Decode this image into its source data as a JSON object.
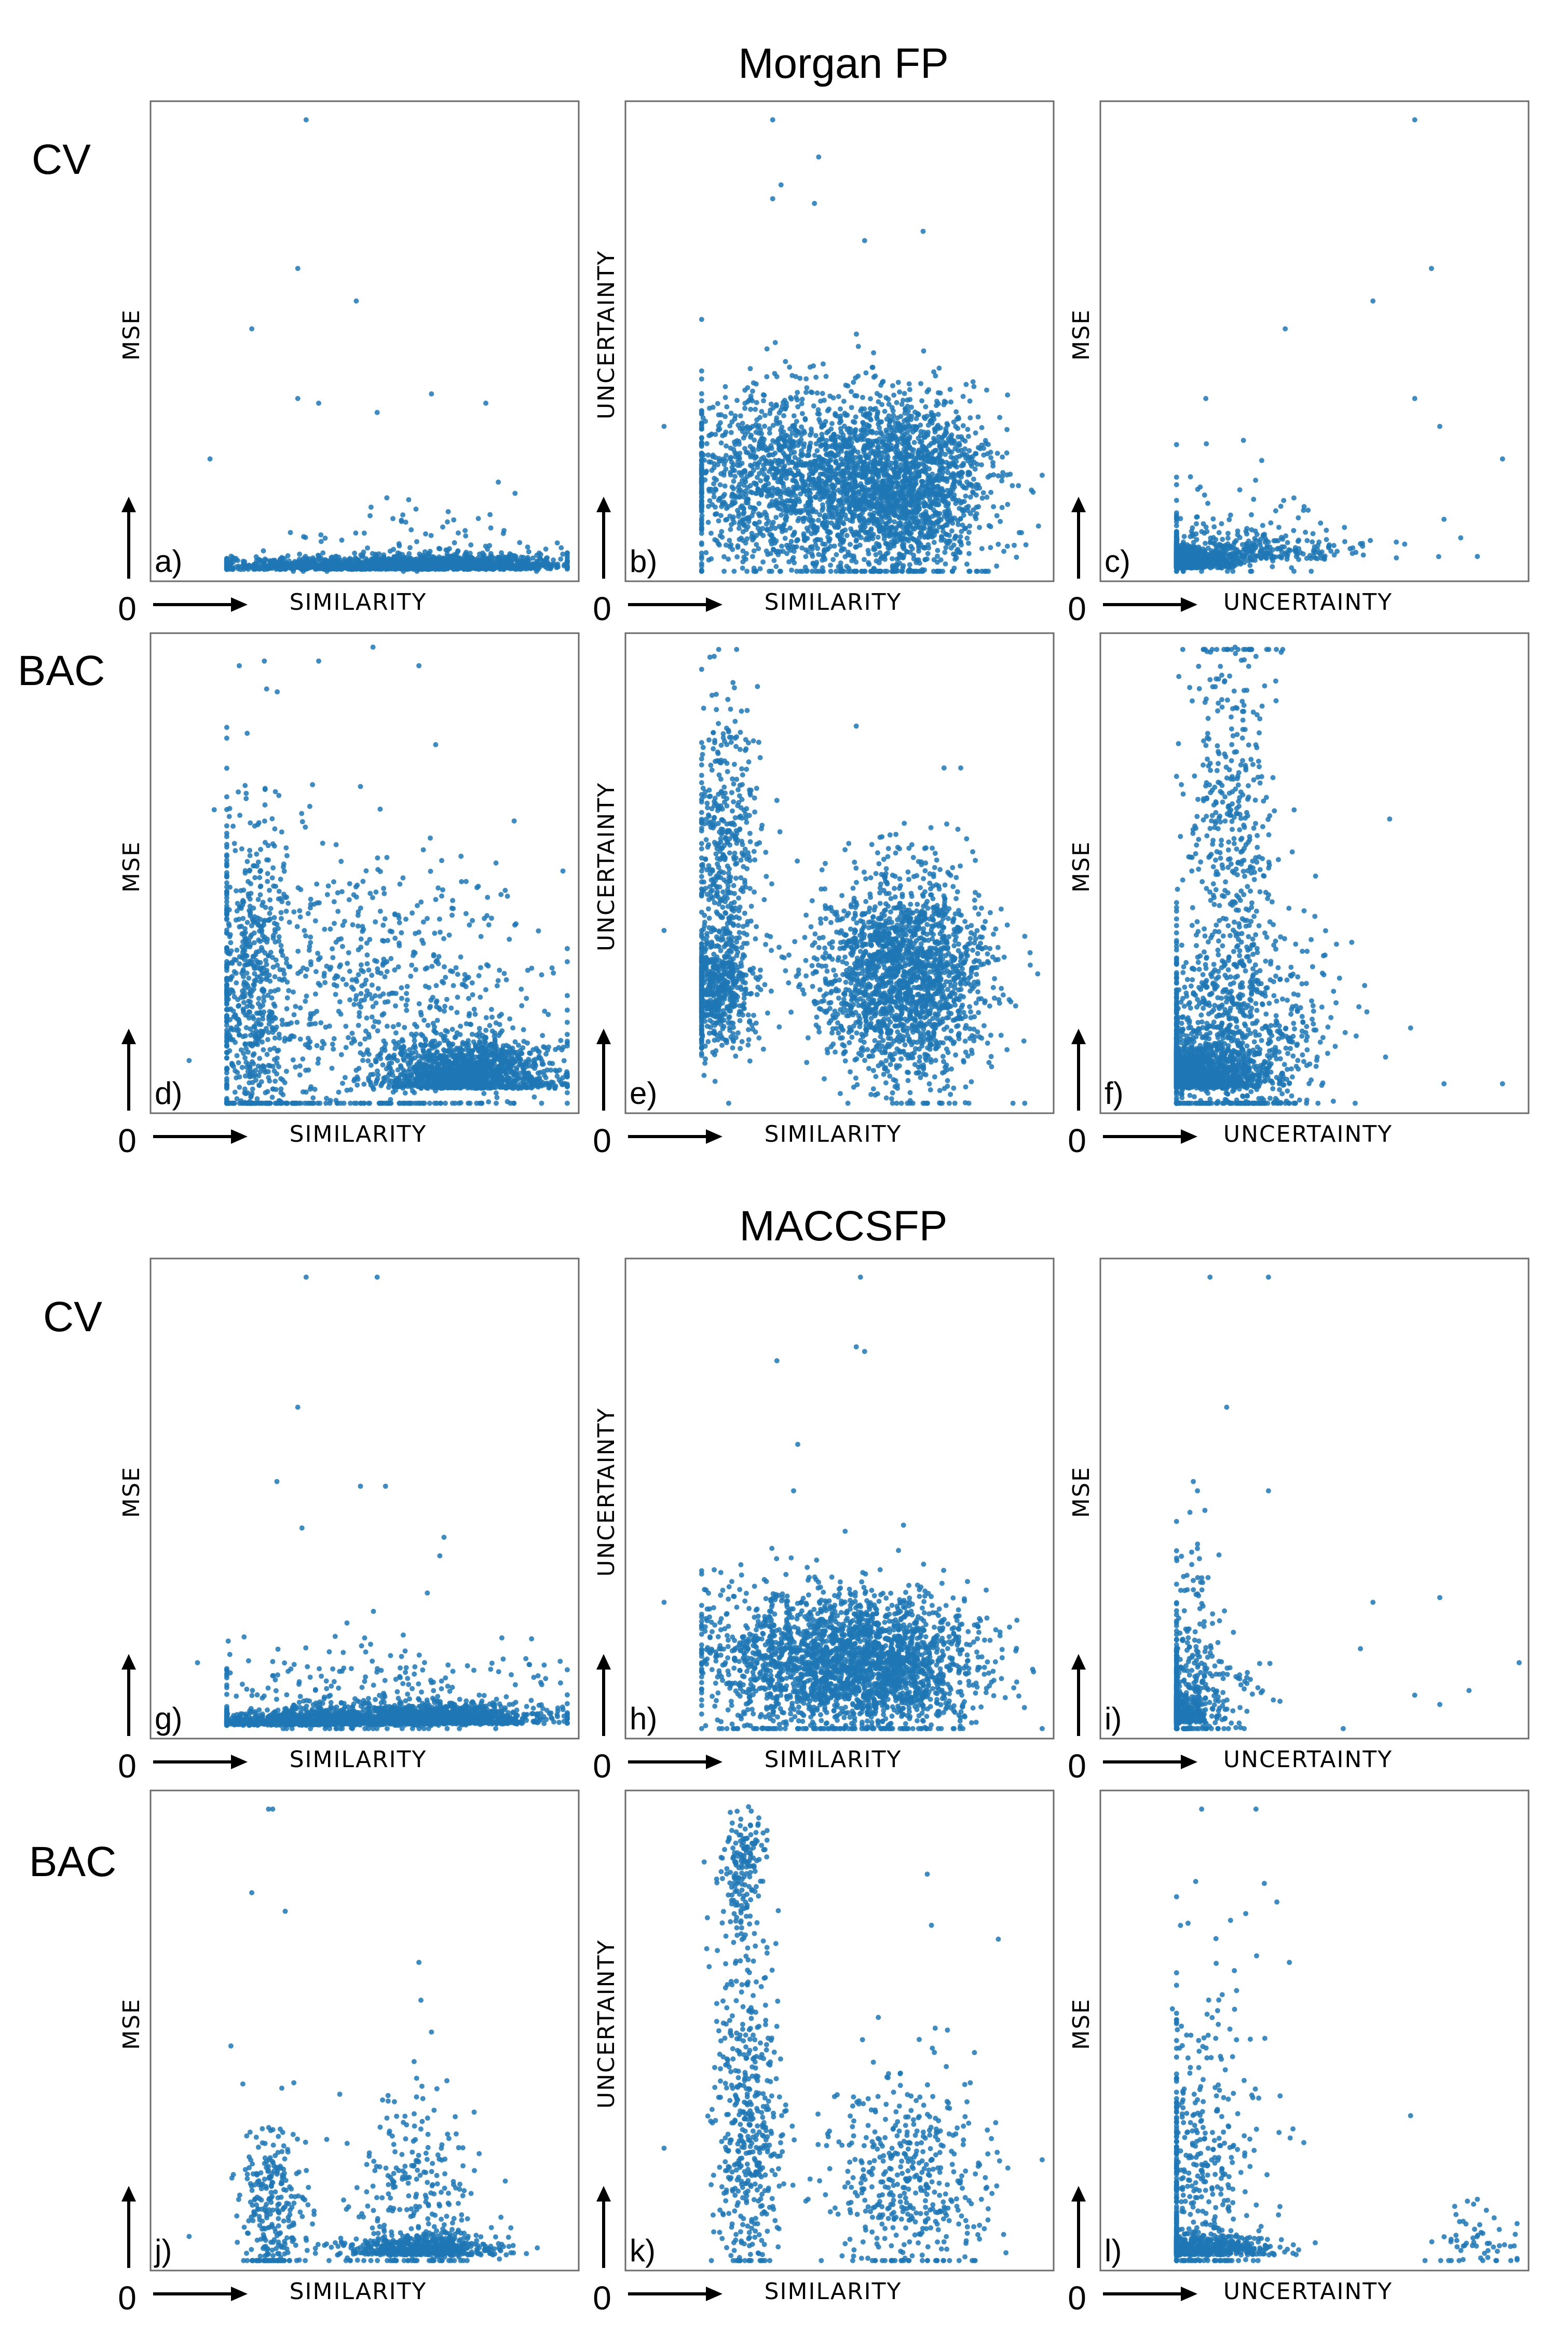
{
  "sections": [
    {
      "title": "Morgan FP",
      "rows": [
        {
          "label": "CV"
        },
        {
          "label": "BAC"
        }
      ]
    },
    {
      "title": "MACCSFP",
      "rows": [
        {
          "label": "CV"
        },
        {
          "label": "BAC"
        }
      ]
    }
  ],
  "colors": {
    "points": "#1f77b4",
    "frame": "#6b6b6b",
    "axis_arrow": "#000000"
  },
  "chart_data": [
    {
      "id": "a",
      "panel_label": "a)",
      "type": "scatter",
      "xlabel": "SIMILARITY",
      "ylabel": "MSE",
      "origin_label": "0",
      "xlim": [
        0,
        1
      ],
      "ylim": [
        0,
        1
      ],
      "seed": 11,
      "n": 1700,
      "clusters": [
        {
          "w": 0.55,
          "mx": 0.7,
          "sx": 0.14,
          "my": 0.012,
          "sy": 0.015
        },
        {
          "w": 0.4,
          "mx": 0.4,
          "sx": 0.18,
          "my": 0.012,
          "sy": 0.012
        },
        {
          "w": 0.05,
          "mx": 0.6,
          "sx": 0.18,
          "my": 0.07,
          "sy": 0.05
        }
      ],
      "outliers": [
        [
          0.36,
          0.98
        ],
        [
          0.34,
          0.66
        ],
        [
          0.48,
          0.59
        ],
        [
          0.23,
          0.53
        ],
        [
          0.34,
          0.38
        ],
        [
          0.39,
          0.37
        ],
        [
          0.66,
          0.39
        ],
        [
          0.79,
          0.37
        ],
        [
          0.53,
          0.35
        ],
        [
          0.13,
          0.25
        ],
        [
          0.82,
          0.2
        ]
      ]
    },
    {
      "id": "b",
      "panel_label": "b)",
      "type": "scatter",
      "xlabel": "SIMILARITY",
      "ylabel": "UNCERTAINTY",
      "origin_label": "0",
      "xlim": [
        0,
        1
      ],
      "ylim": [
        0,
        1
      ],
      "seed": 22,
      "n": 3200,
      "clusters": [
        {
          "w": 0.6,
          "mx": 0.64,
          "sx": 0.11,
          "my": 0.19,
          "sy": 0.1
        },
        {
          "w": 0.4,
          "mx": 0.36,
          "sx": 0.13,
          "my": 0.2,
          "sy": 0.1
        }
      ],
      "outliers": [
        [
          0.34,
          0.98
        ],
        [
          0.45,
          0.9
        ],
        [
          0.36,
          0.84
        ],
        [
          0.34,
          0.81
        ],
        [
          0.44,
          0.8
        ],
        [
          0.7,
          0.74
        ],
        [
          0.56,
          0.72
        ],
        [
          0.22,
          0.3
        ],
        [
          0.08,
          0.32
        ]
      ]
    },
    {
      "id": "c",
      "panel_label": "c)",
      "type": "scatter",
      "xlabel": "UNCERTAINTY",
      "ylabel": "MSE",
      "origin_label": "0",
      "xlim": [
        0,
        1
      ],
      "ylim": [
        0,
        1
      ],
      "seed": 33,
      "n": 1700,
      "clusters": [
        {
          "w": 0.75,
          "mx": 0.14,
          "sx": 0.08,
          "my": 0.015,
          "sy": 0.02
        },
        {
          "w": 0.2,
          "mx": 0.3,
          "sx": 0.14,
          "my": 0.03,
          "sy": 0.03
        },
        {
          "w": 0.05,
          "mx": 0.28,
          "sx": 0.15,
          "my": 0.1,
          "sy": 0.07
        }
      ],
      "outliers": [
        [
          0.74,
          0.98
        ],
        [
          0.78,
          0.66
        ],
        [
          0.43,
          0.53
        ],
        [
          0.64,
          0.59
        ],
        [
          0.74,
          0.38
        ],
        [
          0.95,
          0.25
        ],
        [
          0.8,
          0.32
        ],
        [
          0.24,
          0.38
        ],
        [
          0.33,
          0.29
        ],
        [
          0.85,
          0.08
        ],
        [
          0.89,
          0.04
        ],
        [
          0.81,
          0.12
        ]
      ]
    },
    {
      "id": "d",
      "panel_label": "d)",
      "type": "scatter",
      "xlabel": "SIMILARITY",
      "ylabel": "MSE",
      "origin_label": "0",
      "xlim": [
        0,
        1
      ],
      "ylim": [
        0,
        1
      ],
      "seed": 44,
      "n": 2800,
      "clusters": [
        {
          "w": 0.5,
          "mx": 0.75,
          "sx": 0.1,
          "my": 0.04,
          "sy": 0.05
        },
        {
          "w": 0.25,
          "mx": 0.56,
          "sx": 0.18,
          "my": 0.2,
          "sy": 0.17
        },
        {
          "w": 0.25,
          "mx": 0.23,
          "sx": 0.06,
          "my": 0.24,
          "sy": 0.2
        }
      ],
      "outliers": [
        [
          0.52,
          0.99
        ],
        [
          0.2,
          0.95
        ],
        [
          0.26,
          0.96
        ],
        [
          0.39,
          0.96
        ],
        [
          0.63,
          0.95
        ],
        [
          0.67,
          0.78
        ],
        [
          0.49,
          0.69
        ],
        [
          0.14,
          0.64
        ],
        [
          0.08,
          0.1
        ]
      ]
    },
    {
      "id": "e",
      "panel_label": "e)",
      "type": "scatter",
      "xlabel": "SIMILARITY",
      "ylabel": "UNCERTAINTY",
      "origin_label": "0",
      "xlim": [
        0,
        1
      ],
      "ylim": [
        0,
        1
      ],
      "seed": 55,
      "n": 3000,
      "clusters": [
        {
          "w": 0.65,
          "mx": 0.65,
          "sx": 0.1,
          "my": 0.28,
          "sy": 0.11
        },
        {
          "w": 0.2,
          "mx": 0.2,
          "sx": 0.05,
          "my": 0.25,
          "sy": 0.06
        },
        {
          "w": 0.15,
          "mx": 0.23,
          "sx": 0.04,
          "my": 0.55,
          "sy": 0.17
        }
      ],
      "outliers": [
        [
          0.2,
          0.97
        ],
        [
          0.54,
          0.82
        ],
        [
          0.79,
          0.73
        ],
        [
          0.75,
          0.73
        ],
        [
          0.35,
          0.66
        ],
        [
          0.08,
          0.38
        ]
      ]
    },
    {
      "id": "f",
      "panel_label": "f)",
      "type": "scatter",
      "xlabel": "UNCERTAINTY",
      "ylabel": "MSE",
      "origin_label": "0",
      "xlim": [
        0,
        1
      ],
      "ylim": [
        0,
        1
      ],
      "seed": 66,
      "n": 2800,
      "clusters": [
        {
          "w": 0.55,
          "mx": 0.18,
          "sx": 0.1,
          "my": 0.04,
          "sy": 0.05
        },
        {
          "w": 0.3,
          "mx": 0.3,
          "sx": 0.12,
          "my": 0.15,
          "sy": 0.12
        },
        {
          "w": 0.15,
          "mx": 0.3,
          "sx": 0.05,
          "my": 0.55,
          "sy": 0.25
        }
      ],
      "outliers": [
        [
          0.31,
          0.99
        ],
        [
          0.36,
          0.97
        ],
        [
          0.25,
          0.92
        ],
        [
          0.68,
          0.62
        ],
        [
          0.95,
          0.05
        ],
        [
          0.81,
          0.05
        ],
        [
          0.73,
          0.17
        ]
      ]
    },
    {
      "id": "g",
      "panel_label": "g)",
      "type": "scatter",
      "xlabel": "SIMILARITY",
      "ylabel": "MSE",
      "origin_label": "0",
      "xlim": [
        0,
        1
      ],
      "ylim": [
        0,
        1
      ],
      "seed": 77,
      "n": 2200,
      "clusters": [
        {
          "w": 0.55,
          "mx": 0.65,
          "sx": 0.14,
          "my": 0.018,
          "sy": 0.02
        },
        {
          "w": 0.35,
          "mx": 0.35,
          "sx": 0.16,
          "my": 0.015,
          "sy": 0.015
        },
        {
          "w": 0.1,
          "mx": 0.5,
          "sx": 0.2,
          "my": 0.08,
          "sy": 0.06
        }
      ],
      "outliers": [
        [
          0.36,
          0.98
        ],
        [
          0.53,
          0.98
        ],
        [
          0.34,
          0.7
        ],
        [
          0.29,
          0.54
        ],
        [
          0.49,
          0.53
        ],
        [
          0.55,
          0.53
        ],
        [
          0.35,
          0.44
        ],
        [
          0.69,
          0.42
        ],
        [
          0.68,
          0.38
        ],
        [
          0.65,
          0.3
        ],
        [
          0.1,
          0.15
        ]
      ]
    },
    {
      "id": "h",
      "panel_label": "h)",
      "type": "scatter",
      "xlabel": "SIMILARITY",
      "ylabel": "UNCERTAINTY",
      "origin_label": "0",
      "xlim": [
        0,
        1
      ],
      "ylim": [
        0,
        1
      ],
      "seed": 88,
      "n": 2600,
      "clusters": [
        {
          "w": 0.65,
          "mx": 0.6,
          "sx": 0.12,
          "my": 0.14,
          "sy": 0.07
        },
        {
          "w": 0.35,
          "mx": 0.37,
          "sx": 0.12,
          "my": 0.16,
          "sy": 0.08
        }
      ],
      "outliers": [
        [
          0.55,
          0.98
        ],
        [
          0.54,
          0.83
        ],
        [
          0.56,
          0.82
        ],
        [
          0.35,
          0.8
        ],
        [
          0.4,
          0.62
        ],
        [
          0.39,
          0.52
        ],
        [
          0.08,
          0.28
        ],
        [
          0.2,
          0.35
        ]
      ]
    },
    {
      "id": "i",
      "panel_label": "i)",
      "type": "scatter",
      "xlabel": "UNCERTAINTY",
      "ylabel": "MSE",
      "origin_label": "0",
      "xlim": [
        0,
        1
      ],
      "ylim": [
        0,
        1
      ],
      "seed": 99,
      "n": 1600,
      "clusters": [
        {
          "w": 0.7,
          "mx": 0.1,
          "sx": 0.06,
          "my": 0.02,
          "sy": 0.025
        },
        {
          "w": 0.25,
          "mx": 0.18,
          "sx": 0.08,
          "my": 0.07,
          "sy": 0.06
        },
        {
          "w": 0.05,
          "mx": 0.2,
          "sx": 0.05,
          "my": 0.25,
          "sy": 0.12
        }
      ],
      "outliers": [
        [
          0.25,
          0.98
        ],
        [
          0.39,
          0.98
        ],
        [
          0.29,
          0.7
        ],
        [
          0.21,
          0.54
        ],
        [
          0.22,
          0.52
        ],
        [
          0.39,
          0.52
        ],
        [
          0.64,
          0.28
        ],
        [
          0.8,
          0.29
        ],
        [
          0.99,
          0.15
        ],
        [
          0.8,
          0.06
        ],
        [
          0.74,
          0.08
        ],
        [
          0.61,
          0.18
        ],
        [
          0.87,
          0.09
        ]
      ]
    },
    {
      "id": "j",
      "panel_label": "j)",
      "type": "scatter",
      "xlabel": "SIMILARITY",
      "ylabel": "MSE",
      "origin_label": "0",
      "xlim": [
        0,
        1
      ],
      "ylim": [
        0,
        1
      ],
      "seed": 111,
      "n": 1100,
      "clusters": [
        {
          "w": 0.5,
          "mx": 0.64,
          "sx": 0.09,
          "my": 0.02,
          "sy": 0.02
        },
        {
          "w": 0.25,
          "mx": 0.28,
          "sx": 0.04,
          "my": 0.1,
          "sy": 0.1
        },
        {
          "w": 0.25,
          "mx": 0.62,
          "sx": 0.08,
          "my": 0.13,
          "sy": 0.12
        }
      ],
      "outliers": [
        [
          0.27,
          0.98
        ],
        [
          0.28,
          0.98
        ],
        [
          0.23,
          0.8
        ],
        [
          0.31,
          0.76
        ],
        [
          0.63,
          0.65
        ],
        [
          0.18,
          0.47
        ],
        [
          0.66,
          0.5
        ],
        [
          0.08,
          0.06
        ]
      ]
    },
    {
      "id": "k",
      "panel_label": "k)",
      "type": "scatter",
      "xlabel": "SIMILARITY",
      "ylabel": "UNCERTAINTY",
      "origin_label": "0",
      "xlim": [
        0,
        1
      ],
      "ylim": [
        0,
        1
      ],
      "seed": 122,
      "n": 1100,
      "clusters": [
        {
          "w": 0.4,
          "mx": 0.66,
          "sx": 0.1,
          "my": 0.18,
          "sy": 0.12
        },
        {
          "w": 0.35,
          "mx": 0.28,
          "sx": 0.04,
          "my": 0.25,
          "sy": 0.15
        },
        {
          "w": 0.15,
          "mx": 0.27,
          "sx": 0.025,
          "my": 0.85,
          "sy": 0.07
        },
        {
          "w": 0.1,
          "mx": 0.27,
          "sx": 0.04,
          "my": 0.55,
          "sy": 0.15
        }
      ],
      "outliers": [
        [
          0.71,
          0.84
        ],
        [
          0.72,
          0.73
        ],
        [
          0.88,
          0.7
        ],
        [
          0.08,
          0.25
        ]
      ]
    },
    {
      "id": "l",
      "panel_label": "l)",
      "type": "scatter",
      "xlabel": "UNCERTAINTY",
      "ylabel": "MSE",
      "origin_label": "0",
      "xlim": [
        0,
        1
      ],
      "ylim": [
        0,
        1
      ],
      "seed": 133,
      "n": 1200,
      "clusters": [
        {
          "w": 0.55,
          "mx": 0.18,
          "sx": 0.1,
          "my": 0.02,
          "sy": 0.02
        },
        {
          "w": 0.3,
          "mx": 0.2,
          "sx": 0.08,
          "my": 0.15,
          "sy": 0.12
        },
        {
          "w": 0.1,
          "mx": 0.25,
          "sx": 0.07,
          "my": 0.4,
          "sy": 0.15
        },
        {
          "w": 0.05,
          "mx": 0.88,
          "sx": 0.06,
          "my": 0.05,
          "sy": 0.04
        }
      ],
      "outliers": [
        [
          0.23,
          0.98
        ],
        [
          0.36,
          0.98
        ],
        [
          0.38,
          0.82
        ],
        [
          0.41,
          0.78
        ],
        [
          0.44,
          0.65
        ],
        [
          0.16,
          0.55
        ],
        [
          0.73,
          0.32
        ],
        [
          0.93,
          0.1
        ],
        [
          0.89,
          0.14
        ]
      ]
    }
  ]
}
